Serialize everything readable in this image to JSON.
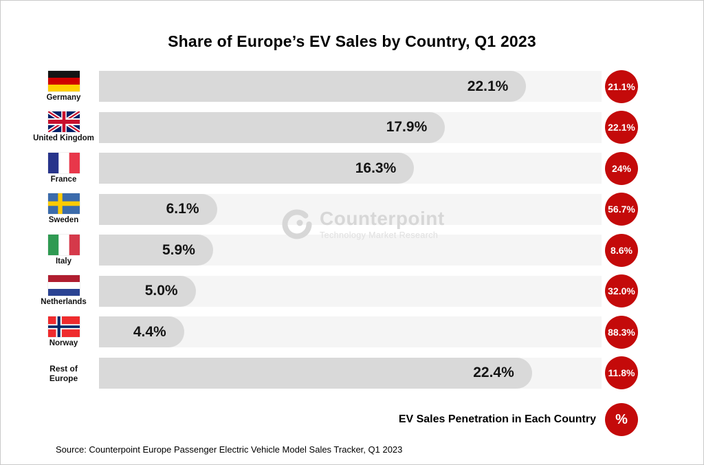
{
  "title": "Share of Europe’s EV Sales by Country, Q1 2023",
  "chart_data": {
    "type": "bar",
    "orientation": "horizontal",
    "title": "Share of Europe’s EV Sales by Country, Q1 2023",
    "categories": [
      "Germany",
      "United Kingdom",
      "France",
      "Sweden",
      "Italy",
      "Netherlands",
      "Norway",
      "Rest of Europe"
    ],
    "series": [
      {
        "name": "Share of Europe's EV Sales (%)",
        "values": [
          22.1,
          17.9,
          16.3,
          6.1,
          5.9,
          5.0,
          4.4,
          22.4
        ]
      },
      {
        "name": "EV Sales Penetration in Each Country (%)",
        "values": [
          21.1,
          22.1,
          24,
          56.7,
          8.6,
          32.0,
          88.3,
          11.8
        ]
      }
    ],
    "xlim": [
      0,
      26
    ],
    "grid": false,
    "legend_position": "bottom-right"
  },
  "rows": [
    {
      "country": "Germany",
      "flag": "germany-flag",
      "share": 22.1,
      "share_label": "22.1%",
      "penetration_label": "21.1%"
    },
    {
      "country": "United Kingdom",
      "flag": "united-kingdom-flag",
      "share": 17.9,
      "share_label": "17.9%",
      "penetration_label": "22.1%"
    },
    {
      "country": "France",
      "flag": "france-flag",
      "share": 16.3,
      "share_label": "16.3%",
      "penetration_label": "24%"
    },
    {
      "country": "Sweden",
      "flag": "sweden-flag",
      "share": 6.1,
      "share_label": "6.1%",
      "penetration_label": "56.7%"
    },
    {
      "country": "Italy",
      "flag": "italy-flag",
      "share": 5.9,
      "share_label": "5.9%",
      "penetration_label": "8.6%"
    },
    {
      "country": "Netherlands",
      "flag": "netherlands-flag",
      "share": 5.0,
      "share_label": "5.0%",
      "penetration_label": "32.0%"
    },
    {
      "country": "Norway",
      "flag": "norway-flag",
      "share": 4.4,
      "share_label": "4.4%",
      "penetration_label": "88.3%"
    },
    {
      "country": "Rest of Europe",
      "flag": null,
      "share": 22.4,
      "share_label": "22.4%",
      "penetration_label": "11.8%"
    }
  ],
  "legend": {
    "label": "EV Sales Penetration in Each Country",
    "symbol": "%"
  },
  "source": "Source: Counterpoint Europe Passenger Electric Vehicle Model Sales Tracker, Q1 2023",
  "watermark": {
    "name": "Counterpoint",
    "tagline": "Technology Market Research"
  },
  "colors": {
    "penetration_circle": "#c40a0a",
    "bar_fill": "#d9d9d9",
    "bar_track": "#f5f5f5",
    "watermark": "#d7d7d7"
  }
}
